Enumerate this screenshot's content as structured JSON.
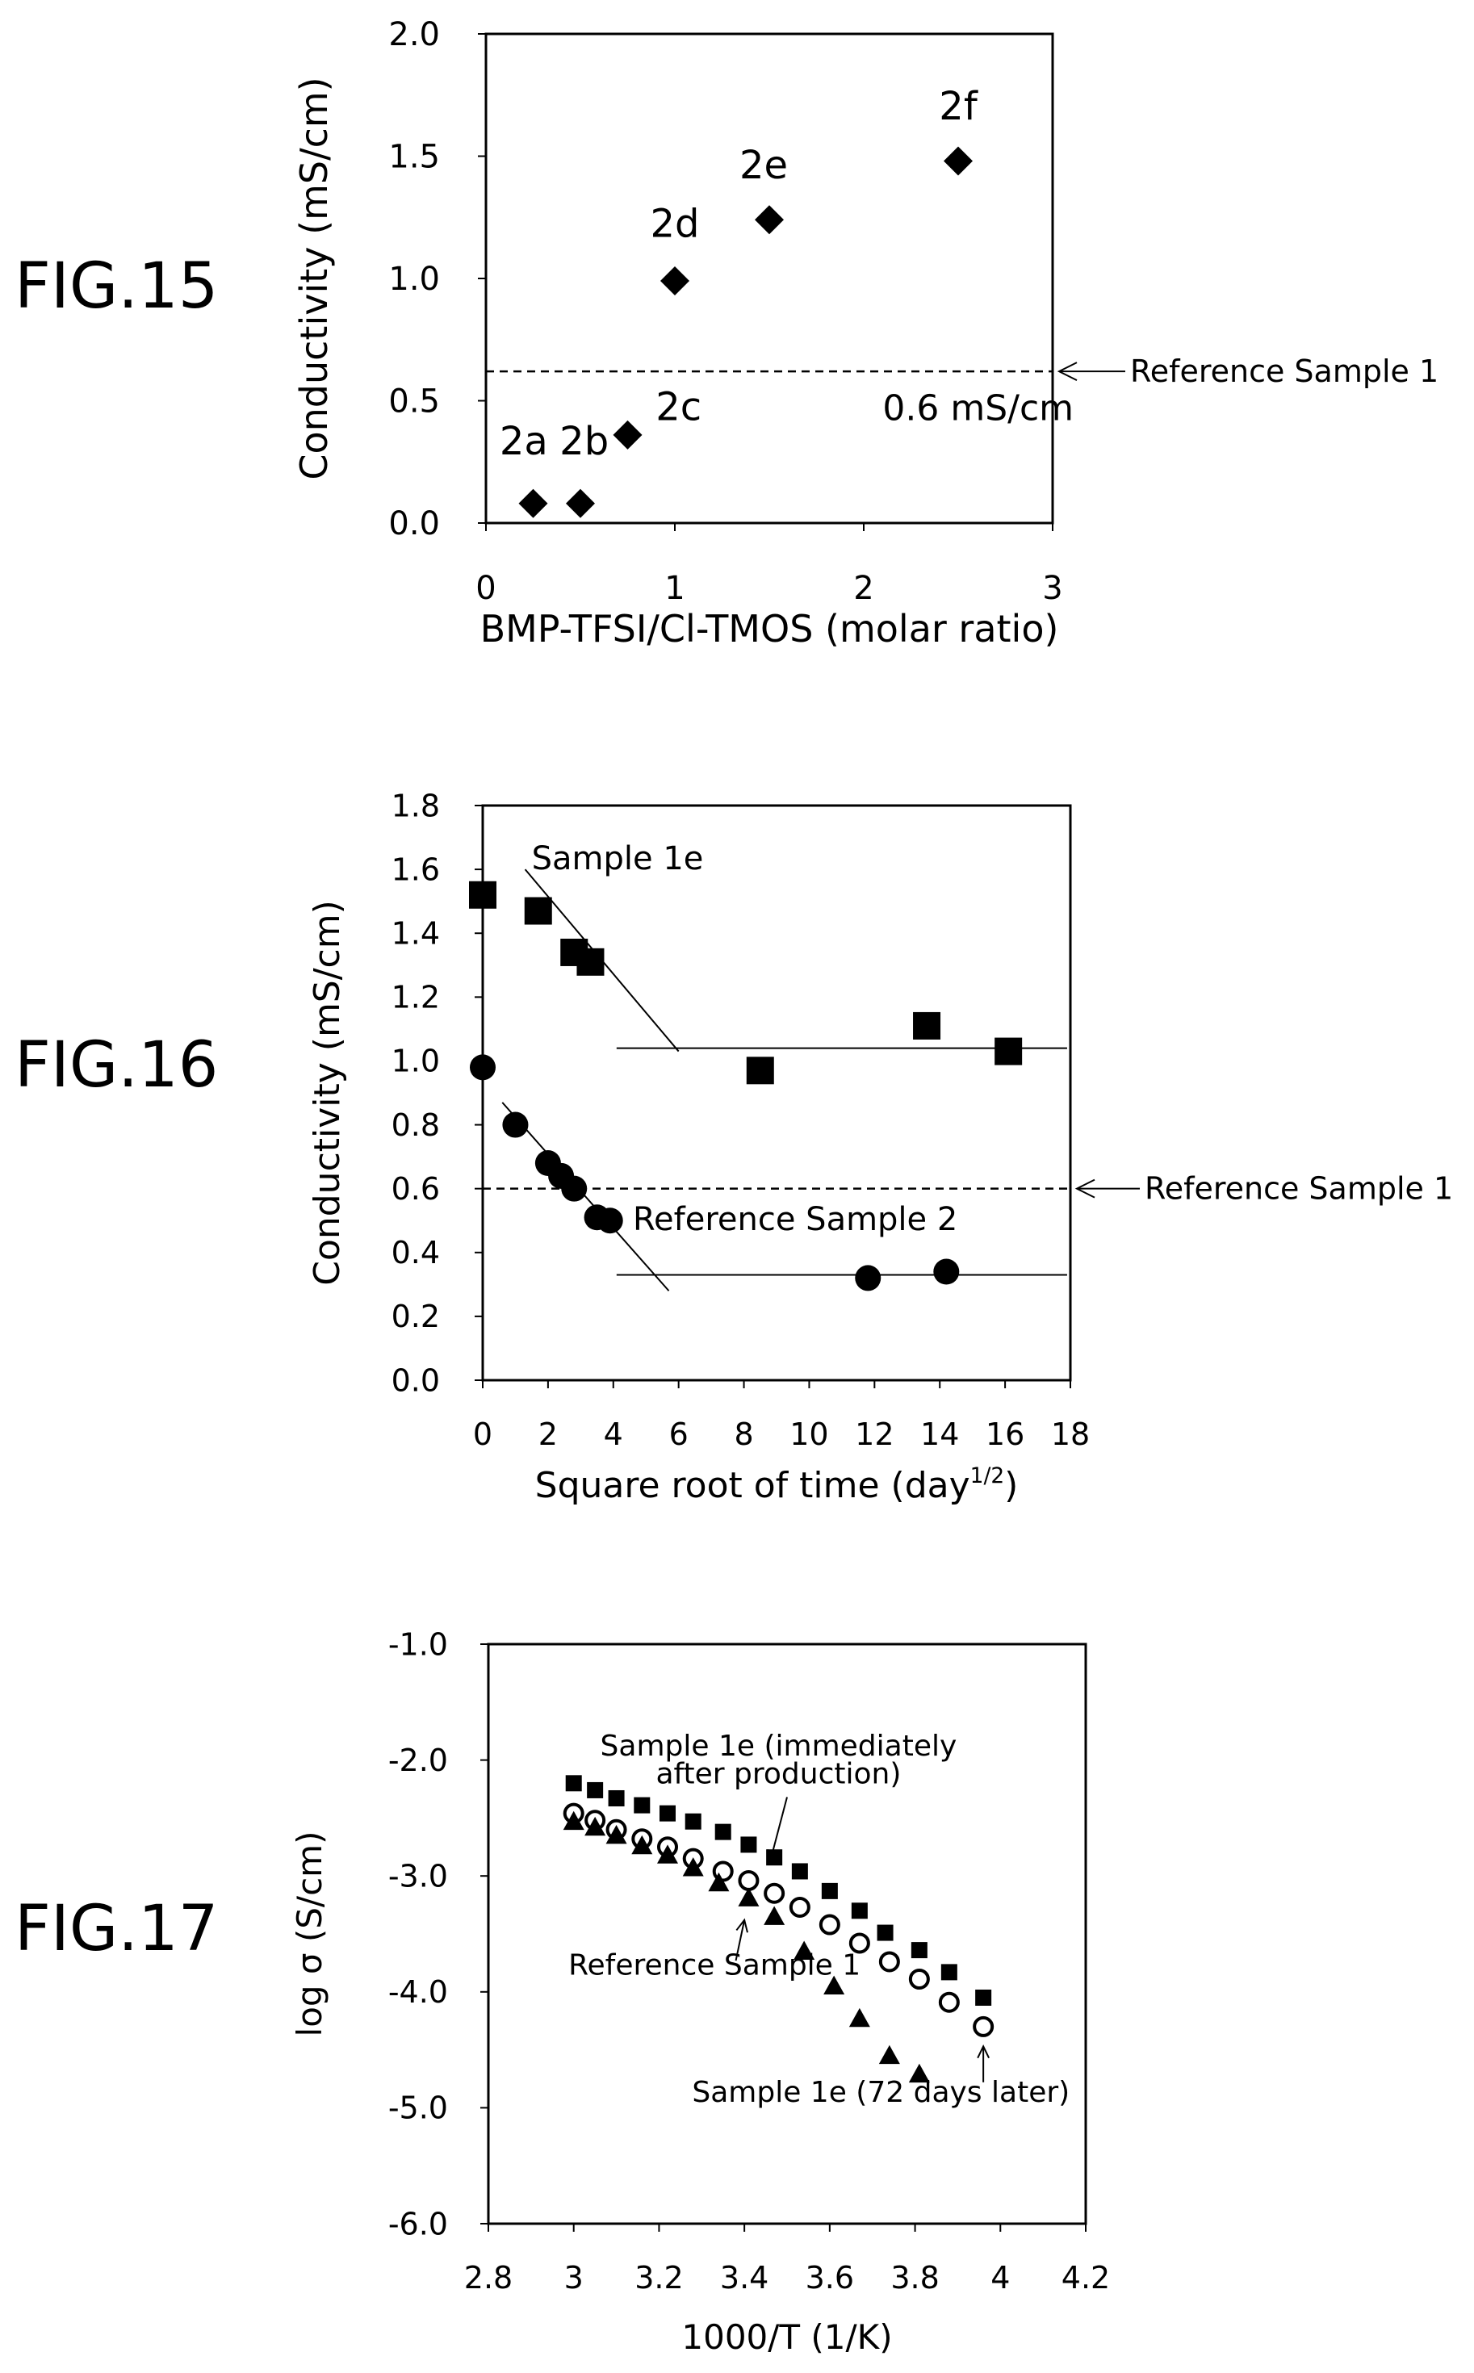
{
  "figures": [
    {
      "label": "FIG.15"
    },
    {
      "label": "FIG.16"
    },
    {
      "label": "FIG.17"
    }
  ],
  "chart_data": [
    {
      "type": "scatter",
      "title": "",
      "xlabel": "BMP-TFSI/Cl-TMOS (molar ratio)",
      "ylabel": "Conductivity (mS/cm)",
      "xlim": [
        0,
        3
      ],
      "ylim": [
        0,
        2.0
      ],
      "xticks": [
        "0",
        "1",
        "2",
        "3"
      ],
      "yticks": [
        "0.0",
        "0.5",
        "1.0",
        "1.5",
        "2.0"
      ],
      "grid": false,
      "series": [
        {
          "marker": "diamond",
          "x": [
            0.25,
            0.5,
            0.75,
            1.0,
            1.5,
            2.5
          ],
          "y": [
            0.08,
            0.08,
            0.36,
            0.99,
            1.24,
            1.48
          ]
        }
      ],
      "point_labels": [
        {
          "text": "2a",
          "x": 0.2,
          "y": 0.28
        },
        {
          "text": "2b",
          "x": 0.52,
          "y": 0.28
        },
        {
          "text": "2c",
          "x": 1.02,
          "y": 0.42
        },
        {
          "text": "2d",
          "x": 1.0,
          "y": 1.17
        },
        {
          "text": "2e",
          "x": 1.47,
          "y": 1.41
        },
        {
          "text": "2f",
          "x": 2.5,
          "y": 1.65
        }
      ],
      "reference_line": {
        "y": 0.62,
        "style": "dashed"
      },
      "annotations": [
        {
          "text": "0.6 mS/cm",
          "x": 2.1,
          "y": 0.42
        },
        {
          "text": "Reference Sample 1",
          "arrow_to_y": 0.62
        }
      ]
    },
    {
      "type": "scatter",
      "title": "",
      "xlabel": "Square root of time (day",
      "xlabel_sup": "1/2",
      "xlabel_end": ")",
      "ylabel": "Conductivity (mS/cm)",
      "xlim": [
        0,
        18
      ],
      "ylim": [
        0,
        1.8
      ],
      "xticks": [
        "0",
        "2",
        "4",
        "6",
        "8",
        "10",
        "12",
        "14",
        "16",
        "18"
      ],
      "yticks": [
        "0.0",
        "0.2",
        "0.4",
        "0.6",
        "0.8",
        "1.0",
        "1.2",
        "1.4",
        "1.6",
        "1.8"
      ],
      "grid": false,
      "series": [
        {
          "marker": "square",
          "x": [
            0,
            1.7,
            2.8,
            3.3,
            8.5,
            13.6,
            16.1
          ],
          "y": [
            1.52,
            1.47,
            1.34,
            1.31,
            0.97,
            1.11,
            1.03
          ]
        },
        {
          "marker": "circle",
          "x": [
            0,
            1.0,
            2.0,
            2.4,
            2.8,
            3.5,
            3.9,
            11.8,
            14.2
          ],
          "y": [
            0.98,
            0.8,
            0.68,
            0.64,
            0.6,
            0.51,
            0.5,
            0.32,
            0.34
          ]
        }
      ],
      "trend_lines": [
        {
          "x": [
            1.3,
            6.0
          ],
          "y": [
            1.6,
            1.03
          ]
        },
        {
          "x": [
            4.1,
            17.9
          ],
          "y": [
            1.04,
            1.04
          ]
        },
        {
          "x": [
            0.6,
            5.7
          ],
          "y": [
            0.87,
            0.28
          ]
        },
        {
          "x": [
            4.1,
            17.9
          ],
          "y": [
            0.33,
            0.33
          ]
        }
      ],
      "reference_line": {
        "y": 0.6,
        "style": "dashed"
      },
      "annotations": [
        {
          "text": "Sample 1e",
          "x": 1.5,
          "y": 1.6
        },
        {
          "text": "Reference Sample 2",
          "x": 4.6,
          "y": 0.47
        },
        {
          "text": "Reference Sample 1",
          "arrow_to_y": 0.6
        }
      ]
    },
    {
      "type": "scatter",
      "title": "",
      "xlabel": "1000/T (1/K)",
      "ylabel": "log σ (S/cm)",
      "xlim": [
        2.8,
        4.2
      ],
      "ylim": [
        -6.0,
        -1.0
      ],
      "xticks": [
        "2.8",
        "3",
        "3.2",
        "3.4",
        "3.6",
        "3.8",
        "4",
        "4.2"
      ],
      "yticks": [
        "-6.0",
        "-5.0",
        "-4.0",
        "-3.0",
        "-2.0",
        "-1.0"
      ],
      "grid": false,
      "series": [
        {
          "marker": "filled-square",
          "x": [
            3.0,
            3.05,
            3.1,
            3.16,
            3.22,
            3.28,
            3.35,
            3.41,
            3.47,
            3.53,
            3.6,
            3.67,
            3.73,
            3.81,
            3.88,
            3.96
          ],
          "y": [
            -2.2,
            -2.26,
            -2.33,
            -2.39,
            -2.46,
            -2.53,
            -2.62,
            -2.73,
            -2.84,
            -2.96,
            -3.13,
            -3.3,
            -3.49,
            -3.64,
            -3.83,
            -4.05
          ]
        },
        {
          "marker": "open-circle",
          "x": [
            3.0,
            3.05,
            3.1,
            3.16,
            3.22,
            3.28,
            3.35,
            3.41,
            3.47,
            3.53,
            3.6,
            3.67,
            3.74,
            3.81,
            3.88,
            3.96
          ],
          "y": [
            -2.46,
            -2.52,
            -2.6,
            -2.68,
            -2.75,
            -2.85,
            -2.96,
            -3.04,
            -3.15,
            -3.27,
            -3.42,
            -3.58,
            -3.74,
            -3.89,
            -4.09,
            -4.3
          ]
        },
        {
          "marker": "filled-triangle",
          "x": [
            3.0,
            3.05,
            3.1,
            3.16,
            3.22,
            3.28,
            3.34,
            3.41,
            3.47,
            3.54,
            3.61,
            3.67,
            3.74,
            3.81
          ],
          "y": [
            -2.53,
            -2.58,
            -2.65,
            -2.74,
            -2.82,
            -2.93,
            -3.06,
            -3.19,
            -3.35,
            -3.65,
            -3.95,
            -4.23,
            -4.55,
            -4.71
          ]
        }
      ],
      "annotations": [
        {
          "text": "Sample 1e (immediately",
          "x": 3.48,
          "y": -1.96
        },
        {
          "text": "after production)",
          "x": 3.48,
          "y": -2.2
        },
        {
          "text": "Reference Sample 1",
          "x": 3.33,
          "y": -3.85
        },
        {
          "text": "Sample 1e (72 days later)",
          "x": 3.72,
          "y": -4.95
        }
      ]
    }
  ]
}
